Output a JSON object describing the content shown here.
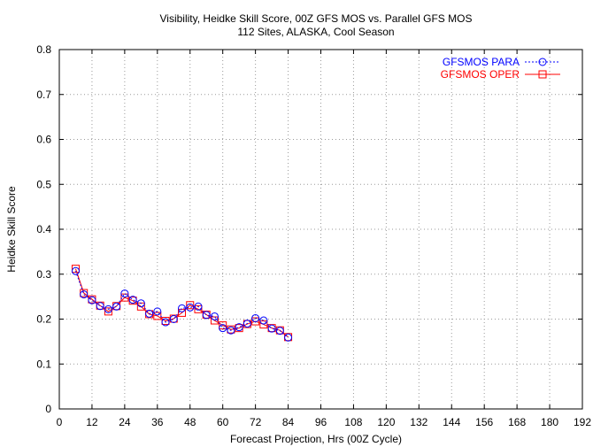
{
  "chart_data": {
    "type": "line",
    "title": "Visibility, Heidke Skill Score, 00Z GFS MOS vs. Parallel GFS MOS",
    "subtitle": "112 Sites, ALASKA, Cool Season",
    "xlabel": "Forecast Projection, Hrs (00Z Cycle)",
    "ylabel": "Heidke Skill Score",
    "xlim": [
      0,
      192
    ],
    "ylim": [
      0,
      0.8
    ],
    "xticks": [
      0,
      12,
      24,
      36,
      48,
      60,
      72,
      84,
      96,
      108,
      120,
      132,
      144,
      156,
      168,
      180,
      192
    ],
    "yticks": [
      0,
      0.1,
      0.2,
      0.3,
      0.4,
      0.5,
      0.6,
      0.7,
      0.8
    ],
    "ytick_labels": [
      "0",
      "0.1",
      "0.2",
      "0.3",
      "0.4",
      "0.5",
      "0.6",
      "0.7",
      "0.8"
    ],
    "grid": "dotted",
    "legend_position": "top-right",
    "x": [
      6,
      9,
      12,
      15,
      18,
      21,
      24,
      27,
      30,
      33,
      36,
      39,
      42,
      45,
      48,
      51,
      54,
      57,
      60,
      63,
      66,
      69,
      72,
      75,
      78,
      81,
      84
    ],
    "series": [
      {
        "name": "GFSMOS PARA",
        "color": "#0000ff",
        "marker": "circle",
        "line": "dotted",
        "values": [
          0.307,
          0.255,
          0.242,
          0.229,
          0.222,
          0.228,
          0.257,
          0.243,
          0.235,
          0.212,
          0.217,
          0.193,
          0.2,
          0.224,
          0.226,
          0.228,
          0.209,
          0.206,
          0.18,
          0.175,
          0.182,
          0.19,
          0.202,
          0.197,
          0.179,
          0.174,
          0.159
        ]
      },
      {
        "name": "GFSMOS OPER",
        "color": "#ff0000",
        "marker": "square",
        "line": "solid",
        "values": [
          0.312,
          0.258,
          0.244,
          0.23,
          0.217,
          0.229,
          0.248,
          0.241,
          0.228,
          0.211,
          0.207,
          0.196,
          0.201,
          0.214,
          0.231,
          0.222,
          0.21,
          0.197,
          0.186,
          0.177,
          0.18,
          0.189,
          0.195,
          0.188,
          0.18,
          0.175,
          0.16
        ]
      }
    ]
  }
}
